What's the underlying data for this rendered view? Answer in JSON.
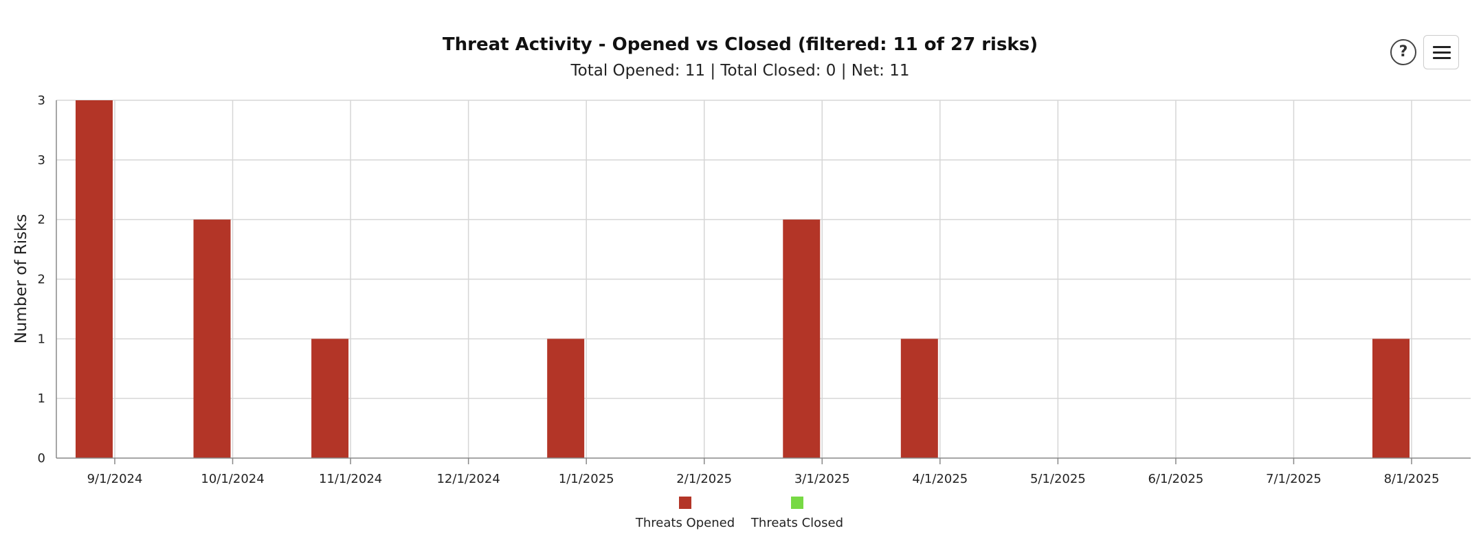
{
  "toolbar": {
    "help_symbol": "?",
    "help_icon": "question-circle-icon",
    "menu_icon": "hamburger-menu-icon"
  },
  "chart_data": {
    "type": "bar",
    "title": "Threat Activity - Opened vs Closed (filtered: 11 of 27 risks)",
    "subtitle": "Total Opened: 11 | Total Closed: 0 | Net: 11",
    "ylabel": "Number of Risks",
    "xlabel": "",
    "ylim": [
      0,
      3
    ],
    "y_tick_values": [
      0,
      0.5,
      1,
      1.5,
      2,
      2.5,
      3
    ],
    "y_tick_labels": [
      "0",
      "1",
      "1",
      "2",
      "2",
      "3",
      "3"
    ],
    "categories": [
      "9/1/2024",
      "10/1/2024",
      "11/1/2024",
      "12/1/2024",
      "1/1/2025",
      "2/1/2025",
      "3/1/2025",
      "4/1/2025",
      "5/1/2025",
      "6/1/2025",
      "7/1/2025",
      "8/1/2025"
    ],
    "series": [
      {
        "name": "Threats Opened",
        "color": "#b33527",
        "values": [
          3,
          2,
          1,
          0,
          1,
          0,
          2,
          1,
          0,
          0,
          0,
          1
        ]
      },
      {
        "name": "Threats Closed",
        "color": "#77d944",
        "values": [
          0,
          0,
          0,
          0,
          0,
          0,
          0,
          0,
          0,
          0,
          0,
          0
        ]
      }
    ],
    "grid": true,
    "legend_position": "bottom-center"
  }
}
